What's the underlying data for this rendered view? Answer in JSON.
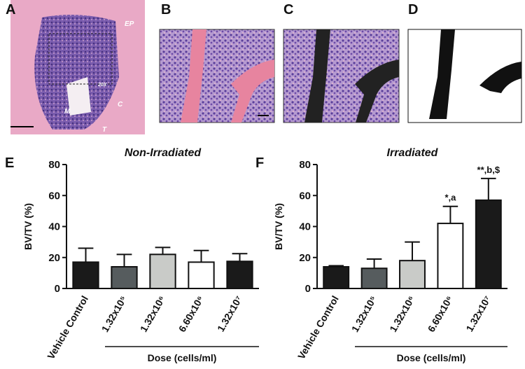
{
  "image_panels": [
    {
      "letter": "A",
      "labels": [
        "EP",
        "C",
        "T",
        "M",
        "20X"
      ]
    },
    {
      "letter": "B"
    },
    {
      "letter": "C"
    },
    {
      "letter": "D"
    }
  ],
  "chart_data": [
    {
      "type": "bar",
      "panel": "E",
      "title": "Non-Irradiated",
      "y_label": "BV/TV (%)",
      "x_label": "Dose (cells/ml)",
      "categories": [
        "Vehicle Control",
        "1.32x10⁵",
        "1.32x10⁶",
        "6.60x10⁶",
        "1.32x10⁷"
      ],
      "values": [
        17,
        14,
        22,
        17,
        17.5
      ],
      "errors": [
        9,
        8,
        4.5,
        7.5,
        5
      ],
      "colors": [
        "#1a1a1a",
        "#565c5e",
        "#c9cbc8",
        "#ffffff",
        "#1a1a1a"
      ],
      "ylim": [
        0,
        80
      ],
      "yticks": [
        0,
        20,
        40,
        60,
        80
      ]
    },
    {
      "type": "bar",
      "panel": "F",
      "title": "Irradiated",
      "y_label": "BV/TV (%)",
      "x_label": "Dose (cells/ml)",
      "categories": [
        "Vehicle Control",
        "1.32x10⁵",
        "1.32x10⁶",
        "6.60x10⁶",
        "1.32x10⁷"
      ],
      "values": [
        14,
        13,
        18,
        42,
        57
      ],
      "errors": [
        0.7,
        6,
        12,
        11,
        14
      ],
      "colors": [
        "#1a1a1a",
        "#565c5e",
        "#c9cbc8",
        "#ffffff",
        "#1a1a1a"
      ],
      "annotations": [
        null,
        null,
        null,
        "*,a",
        "**,b,$"
      ],
      "ylim": [
        0,
        80
      ],
      "yticks": [
        0,
        20,
        40,
        60,
        80
      ]
    }
  ]
}
